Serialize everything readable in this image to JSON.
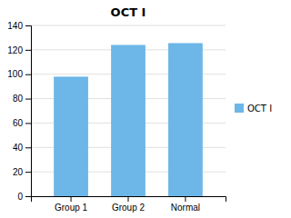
{
  "chart_data": {
    "type": "bar",
    "title": "OCT I",
    "categories": [
      "Group 1",
      "Group 2",
      "Normal"
    ],
    "series": [
      {
        "name": "OCT I",
        "color": "#6cb6e8",
        "values": [
          98,
          124,
          125.5
        ]
      }
    ],
    "ylim": [
      0,
      140
    ],
    "yticks": [
      0,
      20,
      40,
      60,
      80,
      100,
      120,
      140
    ],
    "grid": true,
    "legend": "right"
  }
}
